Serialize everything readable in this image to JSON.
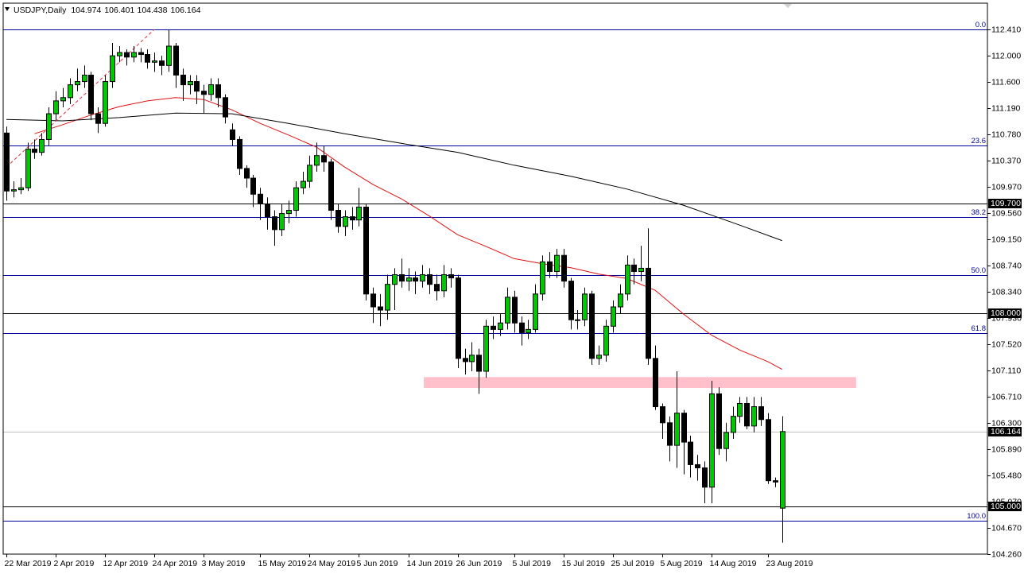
{
  "chart_data": {
    "type": "candlestick",
    "title": "USDJPY,Daily",
    "categories": [
      "22 Mar 2019",
      null,
      null,
      null,
      null,
      null,
      null,
      "2 Apr 2019",
      null,
      null,
      null,
      null,
      null,
      null,
      "12 Apr 2019",
      null,
      null,
      null,
      null,
      null,
      null,
      "24 Apr 2019",
      null,
      null,
      null,
      null,
      null,
      null,
      "3 May 2019",
      null,
      null,
      null,
      null,
      null,
      null,
      null,
      "15 May 2019",
      null,
      null,
      null,
      null,
      null,
      null,
      "24 May 2019",
      null,
      null,
      null,
      null,
      null,
      null,
      "5 Jun 2019",
      null,
      null,
      null,
      null,
      null,
      null,
      "14 Jun 2019",
      null,
      null,
      null,
      null,
      null,
      null,
      "26 Jun 2019",
      null,
      null,
      null,
      null,
      null,
      null,
      null,
      "5 Jul 2019",
      null,
      null,
      null,
      null,
      null,
      null,
      "15 Jul 2019",
      null,
      null,
      null,
      null,
      null,
      null,
      "25 Jul 2019",
      null,
      null,
      null,
      null,
      null,
      null,
      "5 Aug 2019",
      null,
      null,
      null,
      null,
      null,
      null,
      "14 Aug 2019",
      null,
      null,
      null,
      null,
      null,
      null,
      null,
      "23 Aug 2019",
      null,
      null
    ],
    "open": [
      110.8,
      109.9,
      109.92,
      109.95,
      110.55,
      110.5,
      110.7,
      111.1,
      111.3,
      111.35,
      111.55,
      111.6,
      111.7,
      111.1,
      110.95,
      111.6,
      112.0,
      112.05,
      111.98,
      112.05,
      112.02,
      111.9,
      111.92,
      111.85,
      112.15,
      111.7,
      111.55,
      111.6,
      111.45,
      111.4,
      111.55,
      111.35,
      110.85,
      110.7,
      110.25,
      110.1,
      109.85,
      109.7,
      109.5,
      109.3,
      109.55,
      109.6,
      109.95,
      110.05,
      110.3,
      110.45,
      110.35,
      109.6,
      109.35,
      109.5,
      109.45,
      109.65,
      108.3,
      108.1,
      108.05,
      108.45,
      108.6,
      108.5,
      108.55,
      108.5,
      108.6,
      108.45,
      108.35,
      108.6,
      108.55,
      107.3,
      107.25,
      107.35,
      107.1,
      107.8,
      107.75,
      107.85,
      108.25,
      107.85,
      107.7,
      107.75,
      108.3,
      108.8,
      108.65,
      108.9,
      108.5,
      107.9,
      107.9,
      108.3,
      107.3,
      107.35,
      107.8,
      108.1,
      108.3,
      108.75,
      108.65,
      108.7,
      107.3,
      106.55,
      106.3,
      105.95,
      106.45,
      106.0,
      105.65,
      105.6,
      105.3,
      106.75,
      105.9,
      106.15,
      106.4,
      106.6,
      106.25,
      106.55,
      106.35,
      105.4,
      104.974
    ],
    "high": [
      110.9,
      110.05,
      110.1,
      110.65,
      110.7,
      110.8,
      111.2,
      111.45,
      111.5,
      111.65,
      111.8,
      111.85,
      111.75,
      111.2,
      111.7,
      112.2,
      112.15,
      112.1,
      112.15,
      112.12,
      112.1,
      112.05,
      112.0,
      112.41,
      112.2,
      111.8,
      111.7,
      111.7,
      111.55,
      111.65,
      111.65,
      111.4,
      110.95,
      110.75,
      110.3,
      110.15,
      109.95,
      109.8,
      109.6,
      109.7,
      109.75,
      110.05,
      110.2,
      110.45,
      110.65,
      110.6,
      110.4,
      109.7,
      109.6,
      109.65,
      109.95,
      109.7,
      108.4,
      108.3,
      108.6,
      108.7,
      108.85,
      108.7,
      108.65,
      108.75,
      108.7,
      108.6,
      108.75,
      108.7,
      108.6,
      107.45,
      107.55,
      107.45,
      107.9,
      107.95,
      108.0,
      108.4,
      108.35,
      107.95,
      107.9,
      108.45,
      108.9,
      108.95,
      109.0,
      109.0,
      108.55,
      108.05,
      108.4,
      108.35,
      107.5,
      107.9,
      108.2,
      108.45,
      108.9,
      108.85,
      109.05,
      109.32,
      107.5,
      106.6,
      106.4,
      107.1,
      106.5,
      106.1,
      105.8,
      105.7,
      106.95,
      106.85,
      106.3,
      106.55,
      106.7,
      106.7,
      106.7,
      106.7,
      106.45,
      105.45,
      106.401
    ],
    "low": [
      109.75,
      109.8,
      109.85,
      109.9,
      110.4,
      110.45,
      110.6,
      111.0,
      111.2,
      111.25,
      111.45,
      111.5,
      111.0,
      110.8,
      110.9,
      111.5,
      111.9,
      111.85,
      111.9,
      111.9,
      111.8,
      111.75,
      111.7,
      111.75,
      111.5,
      111.3,
      111.4,
      111.25,
      111.1,
      111.3,
      111.2,
      110.95,
      110.6,
      110.15,
      109.95,
      109.65,
      109.45,
      109.3,
      109.05,
      109.2,
      109.4,
      109.5,
      109.85,
      109.95,
      110.2,
      110.2,
      109.45,
      109.25,
      109.2,
      109.3,
      109.35,
      108.2,
      107.85,
      107.8,
      107.9,
      108.05,
      108.4,
      108.35,
      108.3,
      108.4,
      108.3,
      108.2,
      108.25,
      108.4,
      107.15,
      107.05,
      107.1,
      106.75,
      107.0,
      107.6,
      107.65,
      107.75,
      107.7,
      107.5,
      107.6,
      107.7,
      108.2,
      108.55,
      108.55,
      108.4,
      107.75,
      107.75,
      107.8,
      107.2,
      107.2,
      107.25,
      107.7,
      108.0,
      108.2,
      108.45,
      108.5,
      107.2,
      106.5,
      106.05,
      105.7,
      105.6,
      105.5,
      105.45,
      105.4,
      105.05,
      105.05,
      105.8,
      105.7,
      106.05,
      106.3,
      106.2,
      106.15,
      106.25,
      105.35,
      105.3,
      104.438
    ],
    "close": [
      109.9,
      109.92,
      109.95,
      110.55,
      110.5,
      110.7,
      111.1,
      111.3,
      111.35,
      111.55,
      111.6,
      111.7,
      111.1,
      110.95,
      111.6,
      112.0,
      112.05,
      111.98,
      112.05,
      112.02,
      111.9,
      111.92,
      111.85,
      112.15,
      111.7,
      111.55,
      111.6,
      111.45,
      111.4,
      111.55,
      111.35,
      111.05,
      110.7,
      110.25,
      110.1,
      109.85,
      109.7,
      109.5,
      109.3,
      109.55,
      109.6,
      109.95,
      110.05,
      110.3,
      110.45,
      110.35,
      109.6,
      109.35,
      109.5,
      109.45,
      109.65,
      108.3,
      108.1,
      108.05,
      108.45,
      108.6,
      108.5,
      108.55,
      108.5,
      108.6,
      108.45,
      108.35,
      108.6,
      108.55,
      107.3,
      107.25,
      107.35,
      107.1,
      107.8,
      107.75,
      107.85,
      108.25,
      107.85,
      107.7,
      107.75,
      108.3,
      108.8,
      108.65,
      108.9,
      108.5,
      107.9,
      107.9,
      108.3,
      107.3,
      107.35,
      107.8,
      108.1,
      108.3,
      108.75,
      108.65,
      108.7,
      107.3,
      106.55,
      106.3,
      105.95,
      106.45,
      106.0,
      105.65,
      105.6,
      105.3,
      106.75,
      105.9,
      106.15,
      106.4,
      106.6,
      106.25,
      106.55,
      106.35,
      105.4,
      105.38,
      106.164
    ],
    "up_color": "#00c800",
    "down_color": "#000000",
    "xlim": [
      -0.45,
      139.12
    ],
    "ylim": [
      104.26,
      112.817
    ],
    "yticks": [
      {
        "value": 112.41,
        "label": "112.410"
      },
      {
        "value": 112.0,
        "label": "112.000"
      },
      {
        "value": 111.6,
        "label": "111.600"
      },
      {
        "value": 111.19,
        "label": "111.190"
      },
      {
        "value": 110.78,
        "label": "110.780"
      },
      {
        "value": 110.37,
        "label": "110.370"
      },
      {
        "value": 109.97,
        "label": "109.970"
      },
      {
        "value": 109.56,
        "label": "109.560"
      },
      {
        "value": 109.15,
        "label": "109.150"
      },
      {
        "value": 108.74,
        "label": "108.740"
      },
      {
        "value": 108.34,
        "label": "108.340"
      },
      {
        "value": 107.93,
        "label": "107.930"
      },
      {
        "value": 107.52,
        "label": "107.520"
      },
      {
        "value": 107.11,
        "label": "107.110"
      },
      {
        "value": 106.71,
        "label": "106.710"
      },
      {
        "value": 106.3,
        "label": "106.300"
      },
      {
        "value": 105.89,
        "label": "105.890"
      },
      {
        "value": 105.48,
        "label": "105.480"
      },
      {
        "value": 105.07,
        "label": "105.070"
      },
      {
        "value": 104.67,
        "label": "104.670"
      },
      {
        "value": 104.26,
        "label": "104.260"
      }
    ],
    "fib_color": "#0000a0",
    "fib_levels": [
      {
        "value": 112.41,
        "label": "0.0"
      },
      {
        "value": 110.607,
        "label": "23.6"
      },
      {
        "value": 109.5,
        "label": "38.2"
      },
      {
        "value": 108.59,
        "label": "50.0"
      },
      {
        "value": 107.69,
        "label": "61.8"
      },
      {
        "value": 104.78,
        "label": "100.0"
      }
    ],
    "levels": [
      {
        "value": 109.7,
        "label": "109.700"
      },
      {
        "value": 108.0,
        "label": "108.000"
      },
      {
        "value": 105.0,
        "label": "105.000"
      }
    ],
    "price_line": 106.164,
    "zone": {
      "color": "#ffc0cb",
      "x": [
        59.2,
        120.5
      ],
      "values": [
        106.84,
        107.01
      ]
    },
    "trend_line": {
      "color": "#e03040",
      "x": [
        0,
        21
      ],
      "values": [
        110.27,
        112.41
      ]
    },
    "moving_averages": [
      {
        "color": "#e01010",
        "x": [
          4,
          8,
          12,
          16,
          20,
          24,
          28,
          32,
          36,
          40,
          44,
          48,
          52,
          56,
          60,
          64,
          68,
          72,
          76,
          80,
          84,
          88,
          92,
          96,
          100,
          104,
          108,
          110
        ],
        "values": [
          110.79,
          110.93,
          111.08,
          111.21,
          111.3,
          111.35,
          111.32,
          111.16,
          110.95,
          110.77,
          110.58,
          110.27,
          110.0,
          109.78,
          109.51,
          109.22,
          109.04,
          108.85,
          108.77,
          108.71,
          108.61,
          108.54,
          108.36,
          107.99,
          107.66,
          107.43,
          107.25,
          107.13
        ]
      },
      {
        "color": "#000000",
        "x": [
          0,
          8,
          16,
          24,
          32,
          40,
          48,
          56,
          64,
          72,
          80,
          88,
          96,
          104,
          110
        ],
        "values": [
          111.01,
          110.99,
          111.04,
          111.11,
          111.1,
          110.95,
          110.79,
          110.64,
          110.5,
          110.3,
          110.13,
          109.93,
          109.68,
          109.37,
          109.13
        ]
      }
    ]
  }
}
